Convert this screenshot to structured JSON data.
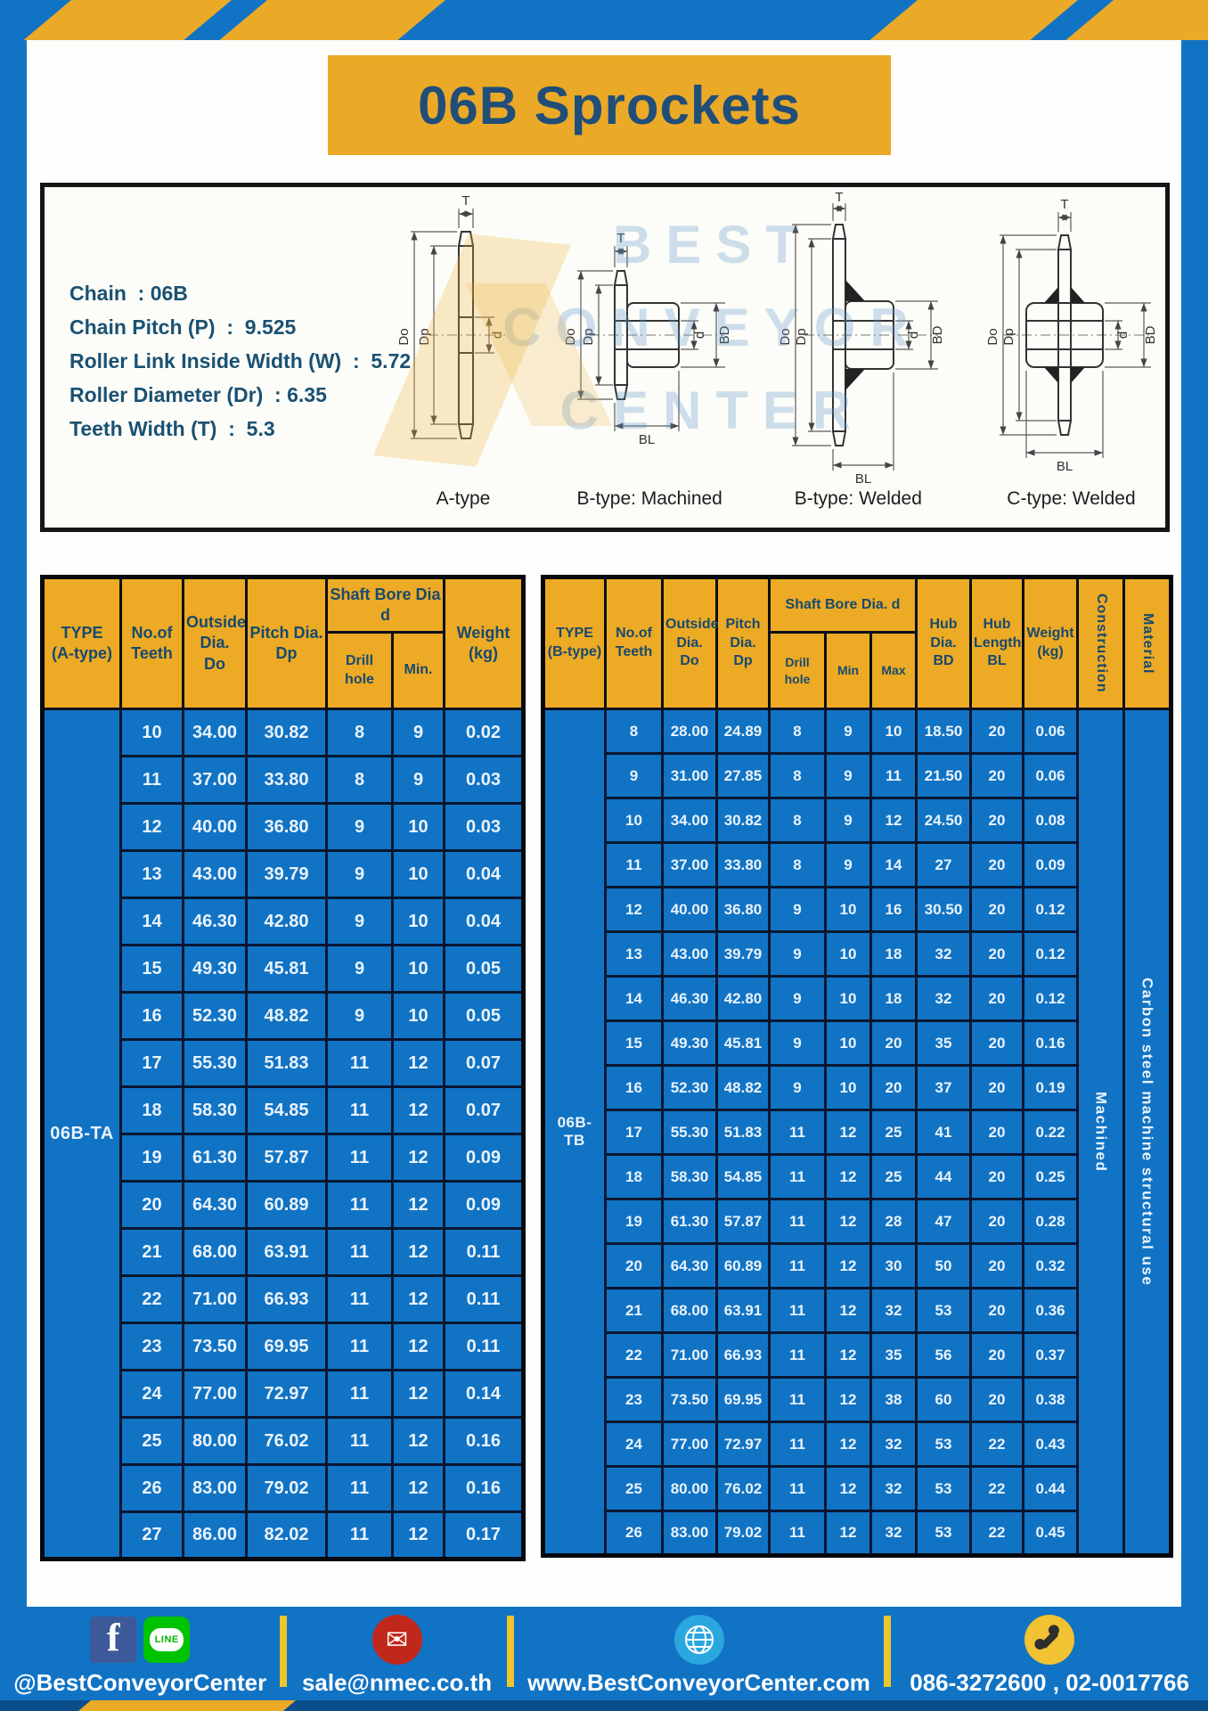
{
  "page_title": "06B Sprockets",
  "colors": {
    "brand_blue": "#1173C4",
    "accent_yellow": "#EBA928",
    "navy_text": "#1F4E79",
    "header_yellow": "#EDAA24",
    "table_border": "#0A1630",
    "footer_text": "#FFFFFF"
  },
  "specs": {
    "lines": [
      "Chain  : 06B",
      "Chain Pitch (P)  :  9.525",
      "Roller Link Inside Width (W)  :  5.72",
      "Roller Diameter (Dr)  : 6.35",
      "Teeth Width (T)  :  5.3"
    ]
  },
  "diagrams": {
    "watermark_lines": [
      "BEST",
      "CONVEYOR",
      "CENTER"
    ],
    "captions": [
      "A-type",
      "B-type: Machined",
      "B-type: Welded",
      "C-type: Welded"
    ],
    "dims": {
      "t": "T",
      "outside": "Do",
      "pitch": "Dp",
      "bore": "d",
      "hub_dia": "BD",
      "hub_len": "BL"
    }
  },
  "table_a": {
    "headers": {
      "type": "TYPE\n(A-type)",
      "teeth": "No.of\nTeeth",
      "outside": "Outside\nDia.\nDo",
      "pitch": "Pitch Dia.\nDp",
      "shaft_bore": "Shaft Bore Dia d",
      "drill": "Drill hole",
      "min": "Min.",
      "weight": "Weight\n(kg)"
    },
    "type_label": "06B-TA",
    "rows": [
      [
        "10",
        "34.00",
        "30.82",
        "8",
        "9",
        "0.02"
      ],
      [
        "11",
        "37.00",
        "33.80",
        "8",
        "9",
        "0.03"
      ],
      [
        "12",
        "40.00",
        "36.80",
        "9",
        "10",
        "0.03"
      ],
      [
        "13",
        "43.00",
        "39.79",
        "9",
        "10",
        "0.04"
      ],
      [
        "14",
        "46.30",
        "42.80",
        "9",
        "10",
        "0.04"
      ],
      [
        "15",
        "49.30",
        "45.81",
        "9",
        "10",
        "0.05"
      ],
      [
        "16",
        "52.30",
        "48.82",
        "9",
        "10",
        "0.05"
      ],
      [
        "17",
        "55.30",
        "51.83",
        "11",
        "12",
        "0.07"
      ],
      [
        "18",
        "58.30",
        "54.85",
        "11",
        "12",
        "0.07"
      ],
      [
        "19",
        "61.30",
        "57.87",
        "11",
        "12",
        "0.09"
      ],
      [
        "20",
        "64.30",
        "60.89",
        "11",
        "12",
        "0.09"
      ],
      [
        "21",
        "68.00",
        "63.91",
        "11",
        "12",
        "0.11"
      ],
      [
        "22",
        "71.00",
        "66.93",
        "11",
        "12",
        "0.11"
      ],
      [
        "23",
        "73.50",
        "69.95",
        "11",
        "12",
        "0.11"
      ],
      [
        "24",
        "77.00",
        "72.97",
        "11",
        "12",
        "0.14"
      ],
      [
        "25",
        "80.00",
        "76.02",
        "11",
        "12",
        "0.16"
      ],
      [
        "26",
        "83.00",
        "79.02",
        "11",
        "12",
        "0.16"
      ],
      [
        "27",
        "86.00",
        "82.02",
        "11",
        "12",
        "0.17"
      ]
    ]
  },
  "table_b": {
    "headers": {
      "type": "TYPE\n(B-type)",
      "teeth": "No.of\nTeeth",
      "outside": "Outside\nDia.\nDo",
      "pitch": "Pitch\nDia.\nDp",
      "shaft_bore": "Shaft Bore Dia.  d",
      "drill": "Drill hole",
      "min": "Min",
      "max": "Max",
      "hub_dia": "Hub\nDia.\nBD",
      "hub_len": "Hub\nLength\nBL",
      "weight": "Weight\n(kg)",
      "construction": "Construction",
      "material": "Material"
    },
    "type_label": "06B-TB",
    "construction_value": "Machined",
    "material_value": "Carbon  steel  machine  structural  use",
    "rows": [
      [
        "8",
        "28.00",
        "24.89",
        "8",
        "9",
        "10",
        "18.50",
        "20",
        "0.06"
      ],
      [
        "9",
        "31.00",
        "27.85",
        "8",
        "9",
        "11",
        "21.50",
        "20",
        "0.06"
      ],
      [
        "10",
        "34.00",
        "30.82",
        "8",
        "9",
        "12",
        "24.50",
        "20",
        "0.08"
      ],
      [
        "11",
        "37.00",
        "33.80",
        "8",
        "9",
        "14",
        "27",
        "20",
        "0.09"
      ],
      [
        "12",
        "40.00",
        "36.80",
        "9",
        "10",
        "16",
        "30.50",
        "20",
        "0.12"
      ],
      [
        "13",
        "43.00",
        "39.79",
        "9",
        "10",
        "18",
        "32",
        "20",
        "0.12"
      ],
      [
        "14",
        "46.30",
        "42.80",
        "9",
        "10",
        "18",
        "32",
        "20",
        "0.12"
      ],
      [
        "15",
        "49.30",
        "45.81",
        "9",
        "10",
        "20",
        "35",
        "20",
        "0.16"
      ],
      [
        "16",
        "52.30",
        "48.82",
        "9",
        "10",
        "20",
        "37",
        "20",
        "0.19"
      ],
      [
        "17",
        "55.30",
        "51.83",
        "11",
        "12",
        "25",
        "41",
        "20",
        "0.22"
      ],
      [
        "18",
        "58.30",
        "54.85",
        "11",
        "12",
        "25",
        "44",
        "20",
        "0.25"
      ],
      [
        "19",
        "61.30",
        "57.87",
        "11",
        "12",
        "28",
        "47",
        "20",
        "0.28"
      ],
      [
        "20",
        "64.30",
        "60.89",
        "11",
        "12",
        "30",
        "50",
        "20",
        "0.32"
      ],
      [
        "21",
        "68.00",
        "63.91",
        "11",
        "12",
        "32",
        "53",
        "20",
        "0.36"
      ],
      [
        "22",
        "71.00",
        "66.93",
        "11",
        "12",
        "35",
        "56",
        "20",
        "0.37"
      ],
      [
        "23",
        "73.50",
        "69.95",
        "11",
        "12",
        "38",
        "60",
        "20",
        "0.38"
      ],
      [
        "24",
        "77.00",
        "72.97",
        "11",
        "12",
        "32",
        "53",
        "22",
        "0.43"
      ],
      [
        "25",
        "80.00",
        "76.02",
        "11",
        "12",
        "32",
        "53",
        "22",
        "0.44"
      ],
      [
        "26",
        "83.00",
        "79.02",
        "11",
        "12",
        "32",
        "53",
        "22",
        "0.45"
      ]
    ]
  },
  "footer": {
    "line_badge": "LINE",
    "items": [
      {
        "text": "@BestConveyorCenter"
      },
      {
        "text": "sale@nmec.co.th"
      },
      {
        "text": "www.BestConveyorCenter.com"
      },
      {
        "text": "086-3272600 , 02-0017766"
      }
    ]
  }
}
